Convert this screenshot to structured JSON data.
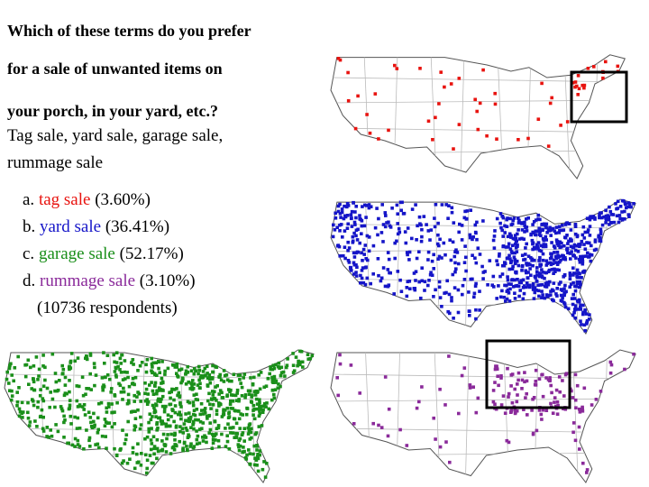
{
  "question": [
    "Which of these terms do you prefer",
    "for a sale of unwanted items on",
    "your porch, in your yard, etc.?"
  ],
  "subtitle": [
    "Tag sale, yard sale, garage sale,",
    "rummage sale"
  ],
  "options": [
    {
      "letter": "a.",
      "term": "tag sale",
      "share": "(3.60%)",
      "color": "#e8130f"
    },
    {
      "letter": "b.",
      "term": "yard sale",
      "share": "(36.41%)",
      "color": "#1515c8"
    },
    {
      "letter": "c.",
      "term": "garage sale",
      "share": "(52.17%)",
      "color": "#1a8f1a"
    },
    {
      "letter": "d.",
      "term": "rummage sale",
      "share": "(3.10%)",
      "color": "#8a2a9a"
    }
  ],
  "respondents": "(10736 respondents)"
}
